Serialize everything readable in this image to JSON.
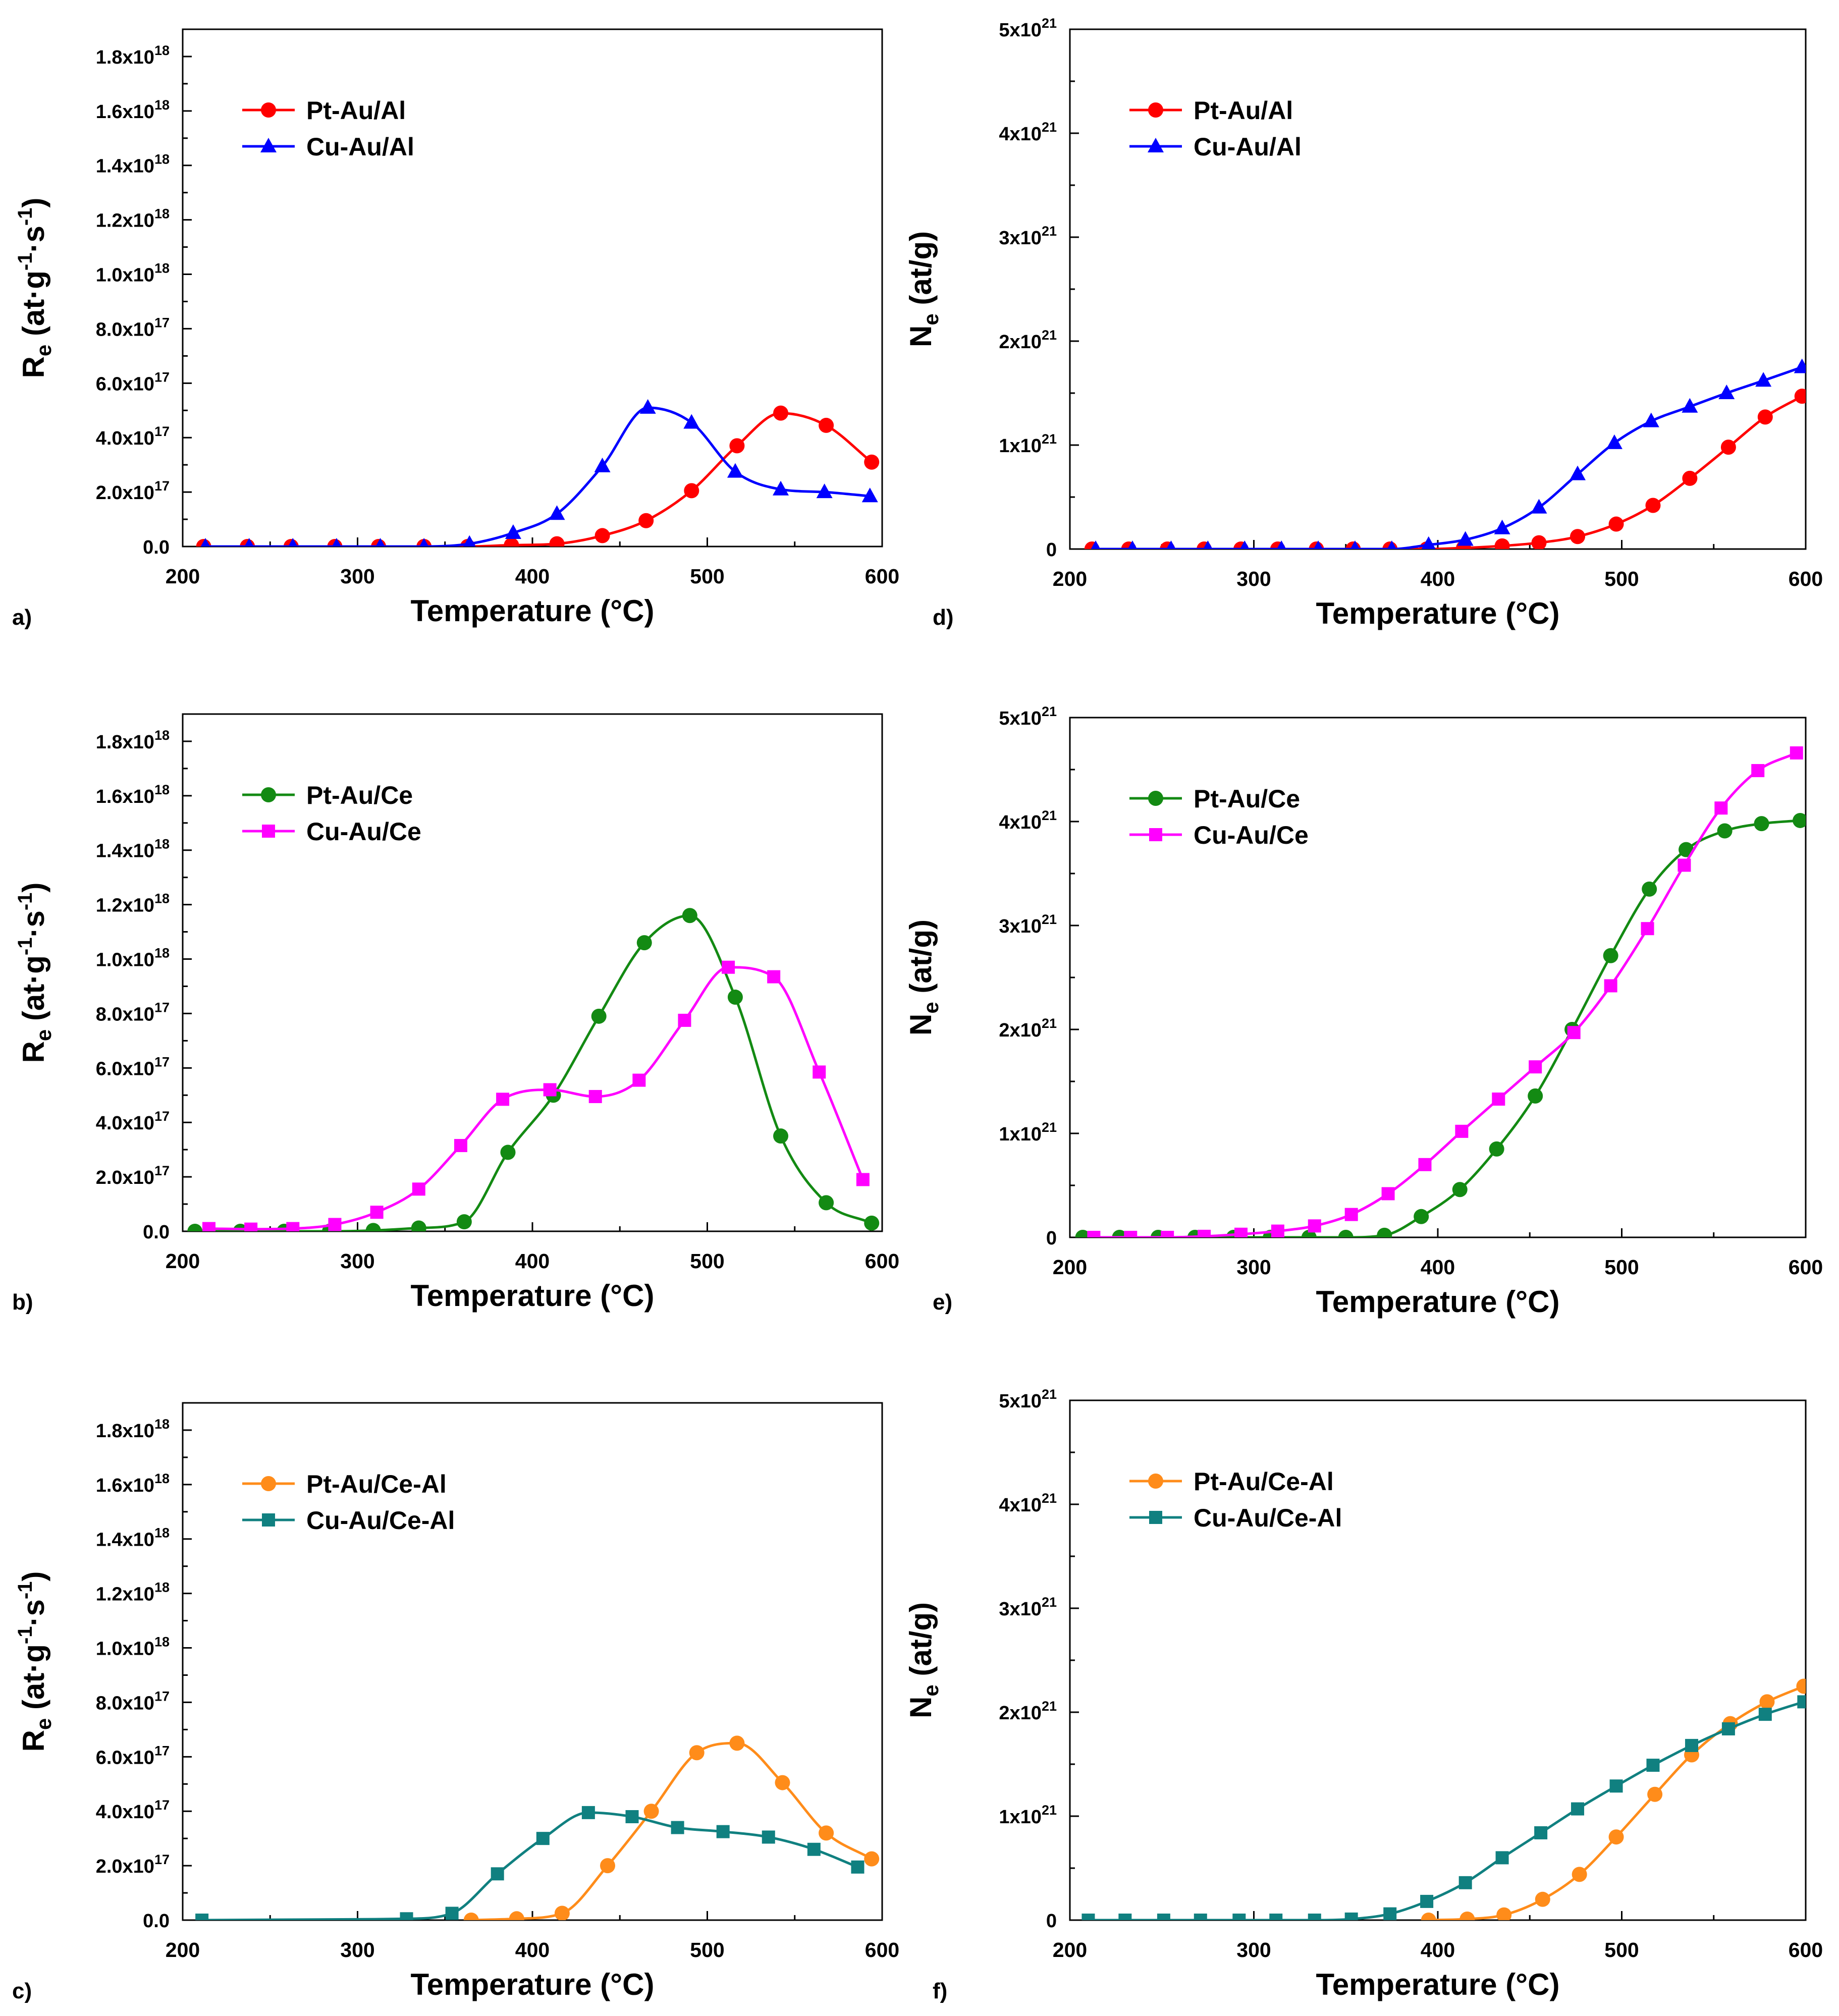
{
  "chart_data": [
    {
      "panel": "a)",
      "type": "line",
      "xlabel": "Temperature (°C)",
      "ylabel": {
        "main": "R",
        "sub": "e",
        "unit": " (at·g",
        "sup1": "-1",
        "mid": "·s",
        "sup2": "-1",
        "close": ")"
      },
      "xlim": [
        200,
        600
      ],
      "ylim": [
        0,
        1.9e+18
      ],
      "xticks": [
        "200",
        "300",
        "400",
        "500",
        "600"
      ],
      "yticks": [
        {
          "value": 0,
          "label": "0.0"
        },
        {
          "value": 2e+17,
          "mant": "2.0x10",
          "exp": "17"
        },
        {
          "value": 4e+17,
          "mant": "4.0x10",
          "exp": "17"
        },
        {
          "value": 6e+17,
          "mant": "6.0x10",
          "exp": "17"
        },
        {
          "value": 8e+17,
          "mant": "8.0x10",
          "exp": "17"
        },
        {
          "value": 1e+18,
          "mant": "1.0x10",
          "exp": "18"
        },
        {
          "value": 1.2e+18,
          "mant": "1.2x10",
          "exp": "18"
        },
        {
          "value": 1.4e+18,
          "mant": "1.4x10",
          "exp": "18"
        },
        {
          "value": 1.6e+18,
          "mant": "1.6x10",
          "exp": "18"
        },
        {
          "value": 1.8e+18,
          "mant": "1.8x10",
          "exp": "18"
        }
      ],
      "series": [
        {
          "name": "Pt-Au/Al",
          "color": "#ff0000",
          "marker": "circle",
          "x": [
            212,
            237,
            262,
            287,
            312,
            338,
            363,
            388,
            414,
            440,
            465,
            491,
            517,
            542,
            568,
            594
          ],
          "y": [
            0,
            0,
            0,
            0,
            0,
            0,
            0,
            5000000000000000.0,
            1e+16,
            4e+16,
            9.5e+16,
            2.05e+17,
            3.7e+17,
            4.9e+17,
            4.45e+17,
            3.1e+17
          ]
        },
        {
          "name": "Cu-Au/Al",
          "color": "#0000ff",
          "marker": "triangle",
          "x": [
            213,
            238,
            263,
            288,
            313,
            338,
            364,
            389,
            414,
            440,
            466,
            491,
            516,
            542,
            567,
            593
          ],
          "y": [
            0,
            0,
            0,
            0,
            0,
            0,
            1e+16,
            5e+16,
            1.2e+17,
            2.95e+17,
            5.1e+17,
            4.55e+17,
            2.75e+17,
            2.1e+17,
            2e+17,
            1.85e+17
          ]
        }
      ]
    },
    {
      "panel": "b)",
      "type": "line",
      "xlabel": "Temperature (°C)",
      "ylabel": {
        "main": "R",
        "sub": "e",
        "unit": " (at·g",
        "sup1": "-1",
        "mid": "·s",
        "sup2": "-1",
        "close": ")"
      },
      "xlim": [
        200,
        600
      ],
      "ylim": [
        0,
        1.9e+18
      ],
      "xticks": [
        "200",
        "300",
        "400",
        "500",
        "600"
      ],
      "yticks": [
        {
          "value": 0,
          "label": "0.0"
        },
        {
          "value": 2e+17,
          "mant": "2.0x10",
          "exp": "17"
        },
        {
          "value": 4e+17,
          "mant": "4.0x10",
          "exp": "17"
        },
        {
          "value": 6e+17,
          "mant": "6.0x10",
          "exp": "17"
        },
        {
          "value": 8e+17,
          "mant": "8.0x10",
          "exp": "17"
        },
        {
          "value": 1e+18,
          "mant": "1.0x10",
          "exp": "18"
        },
        {
          "value": 1.2e+18,
          "mant": "1.2x10",
          "exp": "18"
        },
        {
          "value": 1.4e+18,
          "mant": "1.4x10",
          "exp": "18"
        },
        {
          "value": 1.6e+18,
          "mant": "1.6x10",
          "exp": "18"
        },
        {
          "value": 1.8e+18,
          "mant": "1.8x10",
          "exp": "18"
        }
      ],
      "series": [
        {
          "name": "Pt-Au/Ce",
          "color": "#138a13",
          "marker": "circle",
          "x": [
            207,
            233,
            258,
            284,
            309,
            335,
            361,
            386,
            412,
            438,
            464,
            490,
            516,
            542,
            568,
            594
          ],
          "y": [
            0,
            0,
            0,
            0,
            3000000000000000.0,
            1.2e+16,
            3.5e+16,
            2.9e+17,
            5e+17,
            7.9e+17,
            1.06e+18,
            1.16e+18,
            8.6e+17,
            3.5e+17,
            1.05e+17,
            3e+16
          ]
        },
        {
          "name": "Cu-Au/Ce",
          "color": "#ff00ff",
          "marker": "square",
          "x": [
            215,
            239,
            263,
            287,
            311,
            335,
            359,
            383,
            410,
            436,
            461,
            487,
            512,
            538,
            564,
            589
          ],
          "y": [
            1e+16,
            8000000000000000.0,
            1e+16,
            2.5e+16,
            7e+16,
            1.55e+17,
            3.15e+17,
            4.85e+17,
            5.2e+17,
            4.95e+17,
            5.55e+17,
            7.75e+17,
            9.7e+17,
            9.35e+17,
            5.85e+17,
            1.9e+17
          ]
        }
      ]
    },
    {
      "panel": "c)",
      "type": "line",
      "xlabel": "Temperature (°C)",
      "ylabel": {
        "main": "R",
        "sub": "e",
        "unit": " (at·g",
        "sup1": "-1",
        "mid": "·s",
        "sup2": "-1",
        "close": ")"
      },
      "xlim": [
        200,
        600
      ],
      "ylim": [
        0,
        1.9e+18
      ],
      "xticks": [
        "200",
        "300",
        "400",
        "500",
        "600"
      ],
      "yticks": [
        {
          "value": 0,
          "label": "0.0"
        },
        {
          "value": 2e+17,
          "mant": "2.0x10",
          "exp": "17"
        },
        {
          "value": 4e+17,
          "mant": "4.0x10",
          "exp": "17"
        },
        {
          "value": 6e+17,
          "mant": "6.0x10",
          "exp": "17"
        },
        {
          "value": 8e+17,
          "mant": "8.0x10",
          "exp": "17"
        },
        {
          "value": 1e+18,
          "mant": "1.0x10",
          "exp": "18"
        },
        {
          "value": 1.2e+18,
          "mant": "1.2x10",
          "exp": "18"
        },
        {
          "value": 1.4e+18,
          "mant": "1.4x10",
          "exp": "18"
        },
        {
          "value": 1.6e+18,
          "mant": "1.6x10",
          "exp": "18"
        },
        {
          "value": 1.8e+18,
          "mant": "1.8x10",
          "exp": "18"
        }
      ],
      "series": [
        {
          "name": "Pt-Au/Ce-Al",
          "color": "#ff8c1a",
          "marker": "circle",
          "x": [
            365,
            391,
            417,
            443,
            468,
            494,
            517,
            543,
            568,
            594
          ],
          "y": [
            0,
            5000000000000000.0,
            2.5e+16,
            2e+17,
            4e+17,
            6.15e+17,
            6.5e+17,
            5.05e+17,
            3.2e+17,
            2.25e+17
          ]
        },
        {
          "name": "Cu-Au/Ce-Al",
          "color": "#108080",
          "marker": "square",
          "x": [
            211,
            328,
            354,
            380,
            406,
            432,
            457,
            483,
            509,
            535,
            561,
            586
          ],
          "y": [
            0,
            5000000000000000.0,
            2.5e+16,
            1.7e+17,
            3e+17,
            3.95e+17,
            3.8e+17,
            3.4e+17,
            3.25e+17,
            3.05e+17,
            2.6e+17,
            1.95e+17
          ]
        }
      ]
    },
    {
      "panel": "d)",
      "type": "line",
      "xlabel": "Temperature (°C)",
      "ylabel": {
        "main": "N",
        "sub": "e",
        "unit": " (at/g)"
      },
      "xlim": [
        200,
        600
      ],
      "ylim": [
        0,
        5e+21
      ],
      "xticks": [
        "200",
        "300",
        "400",
        "500",
        "600"
      ],
      "yticks": [
        {
          "value": 0,
          "label": "0"
        },
        {
          "value": 1e+21,
          "mant": "1x10",
          "exp": "21"
        },
        {
          "value": 2e+21,
          "mant": "2x10",
          "exp": "21"
        },
        {
          "value": 3e+21,
          "mant": "3x10",
          "exp": "21"
        },
        {
          "value": 4e+21,
          "mant": "4x10",
          "exp": "21"
        },
        {
          "value": 5e+21,
          "mant": "5x10",
          "exp": "21"
        }
      ],
      "series": [
        {
          "name": "Pt-Au/Al",
          "color": "#ff0000",
          "marker": "circle",
          "x": [
            212,
            232,
            253,
            273,
            293,
            313,
            334,
            354,
            374,
            394,
            414,
            435,
            455,
            476,
            497,
            517,
            537,
            558,
            578,
            598
          ],
          "y": [
            0,
            0,
            0,
            0,
            0,
            0,
            0,
            0,
            0,
            0,
            1e+19,
            3e+19,
            6e+19,
            1.2e+20,
            2.4e+20,
            4.2e+20,
            6.8e+20,
            9.8e+20,
            1.27e+21,
            1.47e+21
          ]
        },
        {
          "name": "Cu-Au/Al",
          "color": "#0000ff",
          "marker": "triangle",
          "x": [
            214,
            234,
            255,
            275,
            295,
            315,
            335,
            355,
            375,
            395,
            415,
            435,
            455,
            476,
            496,
            516,
            537,
            557,
            577,
            598
          ],
          "y": [
            0,
            0,
            0,
            0,
            0,
            0,
            0,
            0,
            0,
            4e+19,
            9e+19,
            2e+20,
            4e+20,
            7.2e+20,
            1.02e+21,
            1.23e+21,
            1.37e+21,
            1.5e+21,
            1.62e+21,
            1.75e+21
          ]
        }
      ]
    },
    {
      "panel": "e)",
      "type": "line",
      "xlabel": "Temperature (°C)",
      "ylabel": {
        "main": "N",
        "sub": "e",
        "unit": " (at/g)"
      },
      "xlim": [
        200,
        600
      ],
      "ylim": [
        0,
        5e+21
      ],
      "xticks": [
        "200",
        "300",
        "400",
        "500",
        "600"
      ],
      "yticks": [
        {
          "value": 0,
          "label": "0"
        },
        {
          "value": 1e+21,
          "mant": "1x10",
          "exp": "21"
        },
        {
          "value": 2e+21,
          "mant": "2x10",
          "exp": "21"
        },
        {
          "value": 3e+21,
          "mant": "3x10",
          "exp": "21"
        },
        {
          "value": 4e+21,
          "mant": "4x10",
          "exp": "21"
        },
        {
          "value": 5e+21,
          "mant": "5x10",
          "exp": "21"
        }
      ],
      "series": [
        {
          "name": "Pt-Au/Ce",
          "color": "#138a13",
          "marker": "circle",
          "x": [
            207,
            227,
            248,
            268,
            289,
            309,
            330,
            350,
            371,
            391,
            412,
            432,
            453,
            473,
            494,
            515,
            535,
            556,
            576,
            597
          ],
          "y": [
            0,
            0,
            0,
            0,
            0,
            0,
            0,
            0,
            2e+19,
            2e+20,
            4.6e+20,
            8.5e+20,
            1.36e+21,
            2e+21,
            2.71e+21,
            3.35e+21,
            3.73e+21,
            3.91e+21,
            3.98e+21,
            4.01e+21
          ]
        },
        {
          "name": "Cu-Au/Ce",
          "color": "#ff00ff",
          "marker": "square",
          "x": [
            213,
            233,
            253,
            273,
            293,
            313,
            333,
            353,
            373,
            393,
            413,
            433,
            453,
            474,
            494,
            514,
            534,
            554,
            574,
            595
          ],
          "y": [
            0,
            0,
            0,
            1e+19,
            3e+19,
            6e+19,
            1.1e+20,
            2.2e+20,
            4.2e+20,
            7e+20,
            1.02e+21,
            1.33e+21,
            1.64e+21,
            1.97e+21,
            2.42e+21,
            2.97e+21,
            3.58e+21,
            4.13e+21,
            4.49e+21,
            4.66e+21
          ]
        }
      ]
    },
    {
      "panel": "f)",
      "type": "line",
      "xlabel": "Temperature (°C)",
      "ylabel": {
        "main": "N",
        "sub": "e",
        "unit": " (at/g)"
      },
      "xlim": [
        200,
        600
      ],
      "ylim": [
        0,
        5e+21
      ],
      "xticks": [
        "200",
        "300",
        "400",
        "500",
        "600"
      ],
      "yticks": [
        {
          "value": 0,
          "label": "0"
        },
        {
          "value": 1e+21,
          "mant": "1x10",
          "exp": "21"
        },
        {
          "value": 2e+21,
          "mant": "2x10",
          "exp": "21"
        },
        {
          "value": 3e+21,
          "mant": "3x10",
          "exp": "21"
        },
        {
          "value": 4e+21,
          "mant": "4x10",
          "exp": "21"
        },
        {
          "value": 5e+21,
          "mant": "5x10",
          "exp": "21"
        }
      ],
      "series": [
        {
          "name": "Pt-Au/Ce-Al",
          "color": "#ff8c1a",
          "marker": "circle",
          "x": [
            395,
            416,
            436,
            457,
            477,
            497,
            518,
            538,
            559,
            579,
            599
          ],
          "y": [
            0,
            1e+19,
            5e+19,
            2e+20,
            4.4e+20,
            8e+20,
            1.21e+21,
            1.59e+21,
            1.89e+21,
            2.1e+21,
            2.25e+21
          ]
        },
        {
          "name": "Cu-Au/Ce-Al",
          "color": "#108080",
          "marker": "square",
          "x": [
            210,
            230,
            251,
            271,
            292,
            312,
            333,
            353,
            374,
            394,
            415,
            435,
            456,
            476,
            497,
            517,
            538,
            558,
            578,
            599
          ],
          "y": [
            0,
            0,
            0,
            0,
            0,
            0,
            0,
            1e+19,
            6e+19,
            1.8e+20,
            3.6e+20,
            6e+20,
            8.4e+20,
            1.07e+21,
            1.29e+21,
            1.49e+21,
            1.68e+21,
            1.84e+21,
            1.98e+21,
            2.1e+21
          ]
        }
      ]
    }
  ]
}
